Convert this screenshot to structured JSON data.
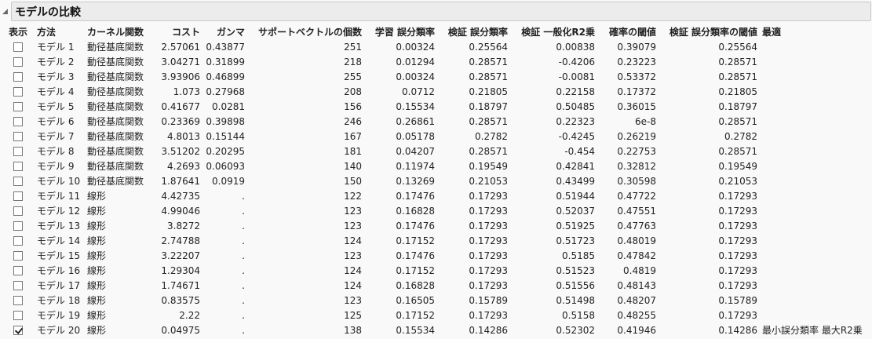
{
  "title": "モデルの比較",
  "columns": [
    "表示",
    "方法",
    "カーネル関数",
    "コスト",
    "ガンマ",
    "サポートベクトルの個数",
    "学習 誤分類率",
    "検証 誤分類率",
    "検証 一般化R2乗",
    "確率の閾値",
    "検証 誤分類率の閾値",
    "最適"
  ],
  "rows": [
    {
      "show": false,
      "method": "モデル 1",
      "kernel": "動径基底関数",
      "cost": "2.57061",
      "gamma": "0.43877",
      "sv": "251",
      "train_err": "0.00324",
      "val_err": "0.25564",
      "val_r2": "0.00838",
      "prob_thr": "0.39079",
      "val_err_thr": "0.25564",
      "best": ""
    },
    {
      "show": false,
      "method": "モデル 2",
      "kernel": "動径基底関数",
      "cost": "3.04271",
      "gamma": "0.31899",
      "sv": "218",
      "train_err": "0.01294",
      "val_err": "0.28571",
      "val_r2": "-0.4206",
      "prob_thr": "0.23223",
      "val_err_thr": "0.28571",
      "best": ""
    },
    {
      "show": false,
      "method": "モデル 3",
      "kernel": "動径基底関数",
      "cost": "3.93906",
      "gamma": "0.46899",
      "sv": "255",
      "train_err": "0.00324",
      "val_err": "0.28571",
      "val_r2": "-0.0081",
      "prob_thr": "0.53372",
      "val_err_thr": "0.28571",
      "best": ""
    },
    {
      "show": false,
      "method": "モデル 4",
      "kernel": "動径基底関数",
      "cost": "1.073",
      "gamma": "0.27968",
      "sv": "208",
      "train_err": "0.0712",
      "val_err": "0.21805",
      "val_r2": "0.22158",
      "prob_thr": "0.17372",
      "val_err_thr": "0.21805",
      "best": ""
    },
    {
      "show": false,
      "method": "モデル 5",
      "kernel": "動径基底関数",
      "cost": "0.41677",
      "gamma": "0.0281",
      "sv": "156",
      "train_err": "0.15534",
      "val_err": "0.18797",
      "val_r2": "0.50485",
      "prob_thr": "0.36015",
      "val_err_thr": "0.18797",
      "best": ""
    },
    {
      "show": false,
      "method": "モデル 6",
      "kernel": "動径基底関数",
      "cost": "0.23369",
      "gamma": "0.39898",
      "sv": "246",
      "train_err": "0.26861",
      "val_err": "0.28571",
      "val_r2": "0.22323",
      "prob_thr": "6e-8",
      "val_err_thr": "0.28571",
      "best": ""
    },
    {
      "show": false,
      "method": "モデル 7",
      "kernel": "動径基底関数",
      "cost": "4.8013",
      "gamma": "0.15144",
      "sv": "167",
      "train_err": "0.05178",
      "val_err": "0.2782",
      "val_r2": "-0.4245",
      "prob_thr": "0.26219",
      "val_err_thr": "0.2782",
      "best": ""
    },
    {
      "show": false,
      "method": "モデル 8",
      "kernel": "動径基底関数",
      "cost": "3.51202",
      "gamma": "0.20295",
      "sv": "181",
      "train_err": "0.04207",
      "val_err": "0.28571",
      "val_r2": "-0.454",
      "prob_thr": "0.22753",
      "val_err_thr": "0.28571",
      "best": ""
    },
    {
      "show": false,
      "method": "モデル 9",
      "kernel": "動径基底関数",
      "cost": "4.2693",
      "gamma": "0.06093",
      "sv": "140",
      "train_err": "0.11974",
      "val_err": "0.19549",
      "val_r2": "0.42841",
      "prob_thr": "0.32812",
      "val_err_thr": "0.19549",
      "best": ""
    },
    {
      "show": false,
      "method": "モデル 10",
      "kernel": "動径基底関数",
      "cost": "1.87641",
      "gamma": "0.0919",
      "sv": "150",
      "train_err": "0.13269",
      "val_err": "0.21053",
      "val_r2": "0.43499",
      "prob_thr": "0.30598",
      "val_err_thr": "0.21053",
      "best": ""
    },
    {
      "show": false,
      "method": "モデル 11",
      "kernel": "線形",
      "cost": "4.42735",
      "gamma": ".",
      "sv": "122",
      "train_err": "0.17476",
      "val_err": "0.17293",
      "val_r2": "0.51944",
      "prob_thr": "0.47722",
      "val_err_thr": "0.17293",
      "best": ""
    },
    {
      "show": false,
      "method": "モデル 12",
      "kernel": "線形",
      "cost": "4.99046",
      "gamma": ".",
      "sv": "123",
      "train_err": "0.16828",
      "val_err": "0.17293",
      "val_r2": "0.52037",
      "prob_thr": "0.47551",
      "val_err_thr": "0.17293",
      "best": ""
    },
    {
      "show": false,
      "method": "モデル 13",
      "kernel": "線形",
      "cost": "3.8272",
      "gamma": ".",
      "sv": "123",
      "train_err": "0.17476",
      "val_err": "0.17293",
      "val_r2": "0.51925",
      "prob_thr": "0.47763",
      "val_err_thr": "0.17293",
      "best": ""
    },
    {
      "show": false,
      "method": "モデル 14",
      "kernel": "線形",
      "cost": "2.74788",
      "gamma": ".",
      "sv": "124",
      "train_err": "0.17152",
      "val_err": "0.17293",
      "val_r2": "0.51723",
      "prob_thr": "0.48019",
      "val_err_thr": "0.17293",
      "best": ""
    },
    {
      "show": false,
      "method": "モデル 15",
      "kernel": "線形",
      "cost": "3.22207",
      "gamma": ".",
      "sv": "123",
      "train_err": "0.17476",
      "val_err": "0.17293",
      "val_r2": "0.5185",
      "prob_thr": "0.47842",
      "val_err_thr": "0.17293",
      "best": ""
    },
    {
      "show": false,
      "method": "モデル 16",
      "kernel": "線形",
      "cost": "1.29304",
      "gamma": ".",
      "sv": "124",
      "train_err": "0.17152",
      "val_err": "0.17293",
      "val_r2": "0.51523",
      "prob_thr": "0.4819",
      "val_err_thr": "0.17293",
      "best": ""
    },
    {
      "show": false,
      "method": "モデル 17",
      "kernel": "線形",
      "cost": "1.74671",
      "gamma": ".",
      "sv": "124",
      "train_err": "0.16828",
      "val_err": "0.17293",
      "val_r2": "0.51556",
      "prob_thr": "0.48143",
      "val_err_thr": "0.17293",
      "best": ""
    },
    {
      "show": false,
      "method": "モデル 18",
      "kernel": "線形",
      "cost": "0.83575",
      "gamma": ".",
      "sv": "123",
      "train_err": "0.16505",
      "val_err": "0.15789",
      "val_r2": "0.51498",
      "prob_thr": "0.48207",
      "val_err_thr": "0.15789",
      "best": ""
    },
    {
      "show": false,
      "method": "モデル 19",
      "kernel": "線形",
      "cost": "2.22",
      "gamma": ".",
      "sv": "125",
      "train_err": "0.17152",
      "val_err": "0.17293",
      "val_r2": "0.5158",
      "prob_thr": "0.48255",
      "val_err_thr": "0.17293",
      "best": ""
    },
    {
      "show": true,
      "method": "モデル 20",
      "kernel": "線形",
      "cost": "0.04975",
      "gamma": ".",
      "sv": "138",
      "train_err": "0.15534",
      "val_err": "0.14286",
      "val_r2": "0.52302",
      "prob_thr": "0.41946",
      "val_err_thr": "0.14286",
      "best": "最小誤分類率 最大R2乗"
    }
  ]
}
